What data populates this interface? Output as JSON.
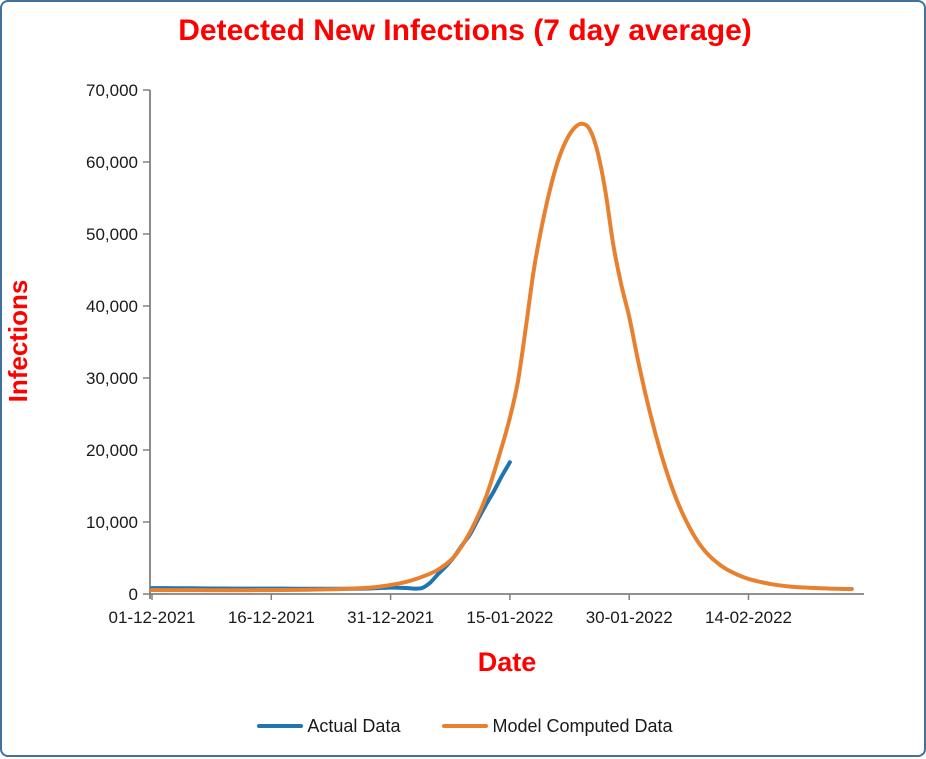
{
  "page": {
    "background": "#FFFFFF",
    "border_color": "#41719C"
  },
  "chart_data": {
    "type": "line",
    "title": "Detected New Infections (7 day average)",
    "title_color": "#FF0000",
    "xlabel": "Date",
    "ylabel": "Infections",
    "axis_color": "#808080",
    "tick_text_color": "#1a1a1a",
    "ylim": [
      0,
      70000
    ],
    "y_tick_labels": [
      "0",
      "10,000",
      "20,000",
      "30,000",
      "40,000",
      "50,000",
      "60,000",
      "70,000"
    ],
    "x_tick_labels": [
      "01-12-2021",
      "16-12-2021",
      "31-12-2021",
      "15-01-2022",
      "30-01-2022",
      "14-02-2022"
    ],
    "x_tick_days": [
      0,
      15,
      30,
      45,
      60,
      75
    ],
    "x_day_range": [
      0,
      89.5
    ],
    "grid": "off",
    "legend_position": "bottom",
    "legend": [
      {
        "name": "Actual Data",
        "color": "#1F74B4"
      },
      {
        "name": "Model Computed Data",
        "color": "#E8812F"
      }
    ],
    "series": [
      {
        "name": "Actual Data",
        "color": "#1F74B4",
        "points": [
          [
            0,
            820
          ],
          [
            3,
            800
          ],
          [
            6,
            780
          ],
          [
            9,
            760
          ],
          [
            12,
            750
          ],
          [
            15,
            745
          ],
          [
            18,
            740
          ],
          [
            21,
            735
          ],
          [
            24,
            730
          ],
          [
            27,
            760
          ],
          [
            29,
            850
          ],
          [
            30,
            900
          ],
          [
            31,
            880
          ],
          [
            32,
            830
          ],
          [
            33,
            750
          ],
          [
            34,
            850
          ],
          [
            35,
            1600
          ],
          [
            36,
            2800
          ],
          [
            37,
            3900
          ],
          [
            38,
            5200
          ],
          [
            39,
            6800
          ],
          [
            40,
            8300
          ],
          [
            41,
            10400
          ],
          [
            42,
            12400
          ],
          [
            43,
            14300
          ],
          [
            44,
            16400
          ],
          [
            45,
            18300
          ]
        ]
      },
      {
        "name": "Model Computed Data",
        "color": "#E8812F",
        "points": [
          [
            0,
            550
          ],
          [
            3,
            545
          ],
          [
            6,
            535
          ],
          [
            9,
            528
          ],
          [
            12,
            530
          ],
          [
            15,
            545
          ],
          [
            18,
            575
          ],
          [
            21,
            625
          ],
          [
            24,
            700
          ],
          [
            26,
            790
          ],
          [
            28,
            950
          ],
          [
            30,
            1250
          ],
          [
            32,
            1700
          ],
          [
            34,
            2400
          ],
          [
            36,
            3400
          ],
          [
            38,
            5200
          ],
          [
            40,
            8600
          ],
          [
            42,
            13500
          ],
          [
            44,
            20500
          ],
          [
            45,
            24500
          ],
          [
            46,
            29500
          ],
          [
            47,
            37000
          ],
          [
            48,
            45000
          ],
          [
            49,
            51000
          ],
          [
            50,
            56000
          ],
          [
            51,
            60000
          ],
          [
            52,
            62800
          ],
          [
            53,
            64600
          ],
          [
            54,
            65300
          ],
          [
            55,
            64600
          ],
          [
            56,
            61500
          ],
          [
            57,
            56000
          ],
          [
            58,
            48500
          ],
          [
            59,
            43000
          ],
          [
            60,
            38500
          ],
          [
            61,
            33000
          ],
          [
            62,
            28000
          ],
          [
            63,
            23500
          ],
          [
            64,
            19500
          ],
          [
            65,
            16000
          ],
          [
            66,
            13000
          ],
          [
            67,
            10500
          ],
          [
            68,
            8400
          ],
          [
            69,
            6700
          ],
          [
            70,
            5400
          ],
          [
            71,
            4400
          ],
          [
            72,
            3600
          ],
          [
            73,
            3000
          ],
          [
            74,
            2500
          ],
          [
            75,
            2100
          ],
          [
            76,
            1800
          ],
          [
            77,
            1550
          ],
          [
            78,
            1350
          ],
          [
            80,
            1050
          ],
          [
            82,
            900
          ],
          [
            84,
            800
          ],
          [
            86,
            730
          ],
          [
            88,
            690
          ]
        ]
      }
    ]
  }
}
